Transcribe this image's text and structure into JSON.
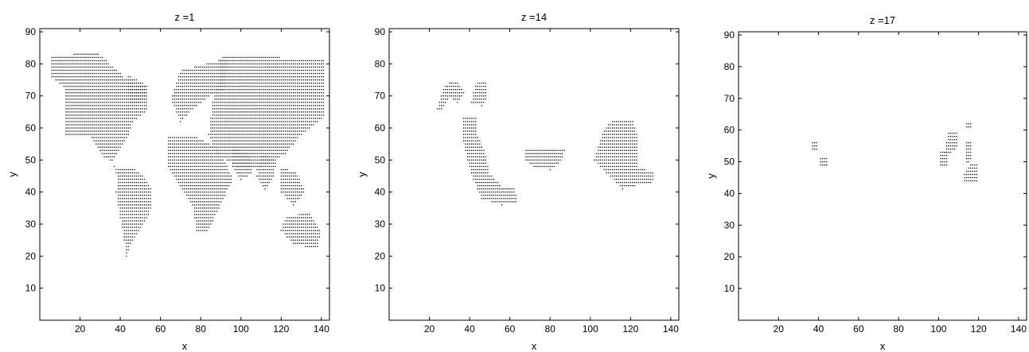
{
  "chart_data": [
    {
      "type": "scatter",
      "title": "z =1",
      "xlabel": "x",
      "ylabel": "y",
      "xlim": [
        0,
        144
      ],
      "ylim": [
        0,
        91
      ],
      "xticks": [
        20,
        40,
        60,
        80,
        100,
        120,
        140
      ],
      "yticks": [
        10,
        20,
        30,
        40,
        50,
        60,
        70,
        80,
        90
      ],
      "grid": false,
      "marker": "dot-grid",
      "regions": [
        {
          "name": "north-america",
          "poly": [
            [
              5,
              82
            ],
            [
              28,
              84
            ],
            [
              35,
              80
            ],
            [
              42,
              76
            ],
            [
              48,
              74
            ],
            [
              54,
              74
            ],
            [
              54,
              66
            ],
            [
              46,
              62
            ],
            [
              44,
              57
            ],
            [
              36,
              50
            ],
            [
              31,
              52
            ],
            [
              24,
              58
            ],
            [
              13,
              58
            ],
            [
              13,
              72
            ],
            [
              6,
              76
            ],
            [
              5,
              82
            ]
          ]
        },
        {
          "name": "greenland",
          "poly": [
            [
              44,
              77
            ],
            [
              46,
              76
            ],
            [
              52,
              74
            ],
            [
              53,
              71
            ],
            [
              50,
              68
            ],
            [
              45,
              68
            ],
            [
              44,
              72
            ],
            [
              44,
              77
            ]
          ]
        },
        {
          "name": "central-america",
          "poly": [
            [
              31,
              52
            ],
            [
              36,
              50
            ],
            [
              38,
              46
            ],
            [
              41,
              45
            ],
            [
              37,
              49
            ],
            [
              32,
              51
            ],
            [
              31,
              52
            ]
          ]
        },
        {
          "name": "south-america",
          "poly": [
            [
              39,
              48
            ],
            [
              45,
              48
            ],
            [
              52,
              45
            ],
            [
              56,
              41
            ],
            [
              55,
              34
            ],
            [
              50,
              28
            ],
            [
              45,
              24
            ],
            [
              43,
              19
            ],
            [
              42,
              25
            ],
            [
              40,
              32
            ],
            [
              38,
              40
            ],
            [
              39,
              48
            ]
          ]
        },
        {
          "name": "europe",
          "poly": [
            [
              66,
              70
            ],
            [
              70,
              78
            ],
            [
              82,
              80
            ],
            [
              94,
              82
            ],
            [
              92,
              72
            ],
            [
              84,
              70
            ],
            [
              76,
              66
            ],
            [
              70,
              62
            ],
            [
              66,
              68
            ],
            [
              66,
              70
            ]
          ]
        },
        {
          "name": "asia",
          "poly": [
            [
              90,
              82
            ],
            [
              110,
              83
            ],
            [
              120,
              82
            ],
            [
              142,
              82
            ],
            [
              142,
              64
            ],
            [
              130,
              58
            ],
            [
              122,
              52
            ],
            [
              108,
              47
            ],
            [
              98,
              48
            ],
            [
              88,
              52
            ],
            [
              84,
              58
            ],
            [
              86,
              68
            ],
            [
              90,
              76
            ],
            [
              90,
              82
            ]
          ]
        },
        {
          "name": "africa",
          "poly": [
            [
              64,
              58
            ],
            [
              75,
              58
            ],
            [
              88,
              54
            ],
            [
              92,
              50
            ],
            [
              96,
              44
            ],
            [
              90,
              36
            ],
            [
              84,
              28
            ],
            [
              78,
              28
            ],
            [
              76,
              36
            ],
            [
              70,
              42
            ],
            [
              64,
              48
            ],
            [
              64,
              58
            ]
          ]
        },
        {
          "name": "arabia",
          "poly": [
            [
              96,
              54
            ],
            [
              104,
              52
            ],
            [
              106,
              46
            ],
            [
              100,
              44
            ],
            [
              96,
              48
            ],
            [
              96,
              54
            ]
          ]
        },
        {
          "name": "india",
          "poly": [
            [
              110,
              52
            ],
            [
              118,
              50
            ],
            [
              116,
              44
            ],
            [
              112,
              40
            ],
            [
              108,
              45
            ],
            [
              110,
              52
            ]
          ]
        },
        {
          "name": "southeast-asia",
          "poly": [
            [
              120,
              48
            ],
            [
              128,
              46
            ],
            [
              132,
              40
            ],
            [
              126,
              36
            ],
            [
              120,
              40
            ],
            [
              120,
              48
            ]
          ]
        },
        {
          "name": "australia",
          "poly": [
            [
              122,
              32
            ],
            [
              134,
              34
            ],
            [
              140,
              28
            ],
            [
              138,
              22
            ],
            [
              126,
              24
            ],
            [
              120,
              28
            ],
            [
              122,
              32
            ]
          ]
        }
      ]
    },
    {
      "type": "scatter",
      "title": "z =14",
      "xlabel": "x",
      "ylabel": "y",
      "xlim": [
        0,
        144
      ],
      "ylim": [
        0,
        91
      ],
      "xticks": [
        20,
        40,
        60,
        80,
        100,
        120,
        140
      ],
      "yticks": [
        10,
        20,
        30,
        40,
        50,
        60,
        70,
        80,
        90
      ],
      "grid": false,
      "marker": "dot-grid",
      "regions": [
        {
          "name": "western-arc",
          "poly": [
            [
              24,
              66
            ],
            [
              27,
              73
            ],
            [
              31,
              75
            ],
            [
              35,
              74
            ],
            [
              38,
              71
            ],
            [
              34,
              68
            ],
            [
              30,
              70
            ],
            [
              27,
              66
            ],
            [
              24,
              66
            ]
          ]
        },
        {
          "name": "western-hook",
          "poly": [
            [
              41,
              68
            ],
            [
              43,
              74
            ],
            [
              48,
              75
            ],
            [
              49,
              70
            ],
            [
              46,
              67
            ],
            [
              43,
              68
            ],
            [
              41,
              68
            ]
          ]
        },
        {
          "name": "central-chain",
          "poly": [
            [
              37,
              56
            ],
            [
              37,
              64
            ],
            [
              43,
              64
            ],
            [
              44,
              58
            ],
            [
              48,
              52
            ],
            [
              50,
              46
            ],
            [
              56,
              42
            ],
            [
              62,
              42
            ],
            [
              64,
              37
            ],
            [
              56,
              36
            ],
            [
              46,
              38
            ],
            [
              42,
              44
            ],
            [
              39,
              50
            ],
            [
              37,
              56
            ]
          ]
        },
        {
          "name": "middle-patch",
          "poly": [
            [
              68,
              54
            ],
            [
              88,
              54
            ],
            [
              86,
              50
            ],
            [
              80,
              47
            ],
            [
              72,
              48
            ],
            [
              68,
              50
            ],
            [
              68,
              54
            ]
          ]
        },
        {
          "name": "eastern-mass",
          "poly": [
            [
              102,
              50
            ],
            [
              106,
              58
            ],
            [
              110,
              62
            ],
            [
              121,
              63
            ],
            [
              124,
              56
            ],
            [
              124,
              48
            ],
            [
              132,
              46
            ],
            [
              131,
              43
            ],
            [
              122,
              42
            ],
            [
              116,
              41
            ],
            [
              108,
              46
            ],
            [
              102,
              50
            ]
          ]
        }
      ]
    },
    {
      "type": "scatter",
      "title": "z =17",
      "xlabel": "x",
      "ylabel": "y",
      "xlim": [
        0,
        144
      ],
      "ylim": [
        0,
        91
      ],
      "xticks": [
        20,
        40,
        60,
        80,
        100,
        120,
        140
      ],
      "yticks": [
        10,
        20,
        30,
        40,
        50,
        60,
        70,
        80,
        90
      ],
      "grid": false,
      "marker": "dot-grid",
      "regions": [
        {
          "name": "blob-a",
          "poly": [
            [
              37,
              54
            ],
            [
              40,
              54
            ],
            [
              40,
              57
            ],
            [
              37,
              57
            ],
            [
              37,
              54
            ]
          ]
        },
        {
          "name": "blob-b",
          "poly": [
            [
              41,
              49
            ],
            [
              45,
              49
            ],
            [
              45,
              52
            ],
            [
              41,
              52
            ],
            [
              41,
              49
            ]
          ]
        },
        {
          "name": "blob-c",
          "poly": [
            [
              103,
              53
            ],
            [
              105,
              60
            ],
            [
              110,
              60
            ],
            [
              110,
              55
            ],
            [
              106,
              53
            ],
            [
              103,
              53
            ]
          ]
        },
        {
          "name": "blob-d",
          "poly": [
            [
              101,
              49
            ],
            [
              101,
              54
            ],
            [
              105,
              54
            ],
            [
              105,
              49
            ],
            [
              101,
              49
            ]
          ]
        },
        {
          "name": "blob-e",
          "poly": [
            [
              114,
              61
            ],
            [
              114,
              63
            ],
            [
              117,
              63
            ],
            [
              117,
              61
            ],
            [
              114,
              61
            ]
          ]
        },
        {
          "name": "blob-f",
          "poly": [
            [
              114,
              50
            ],
            [
              114,
              57
            ],
            [
              117,
              57
            ],
            [
              116,
              50
            ],
            [
              114,
              50
            ]
          ]
        },
        {
          "name": "blob-g",
          "poly": [
            [
              113,
              44
            ],
            [
              113,
              47
            ],
            [
              117,
              50
            ],
            [
              120,
              50
            ],
            [
              120,
              44
            ],
            [
              113,
              44
            ]
          ]
        }
      ]
    }
  ]
}
